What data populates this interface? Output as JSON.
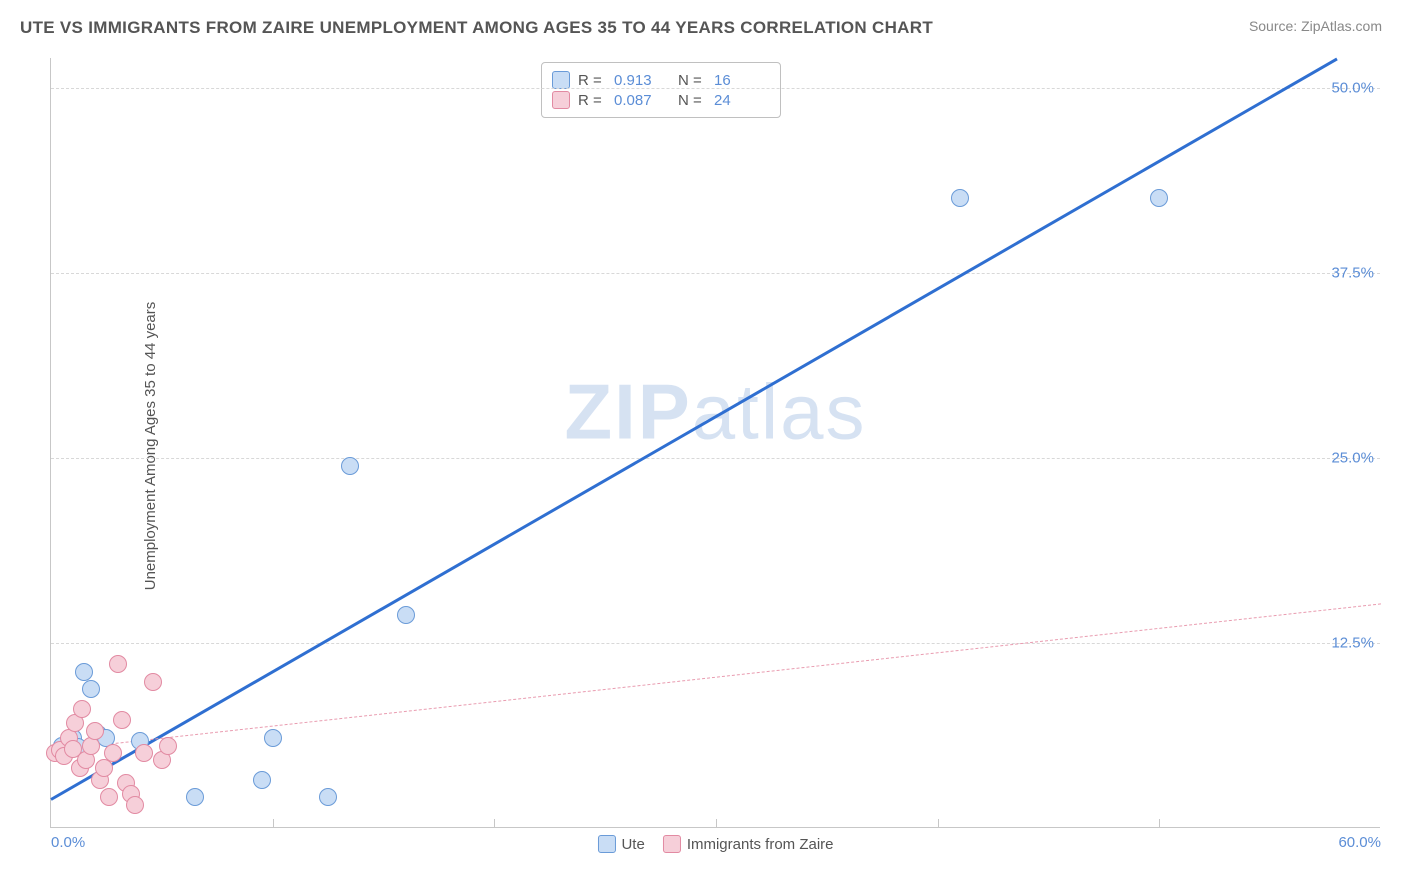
{
  "title": "UTE VS IMMIGRANTS FROM ZAIRE UNEMPLOYMENT AMONG AGES 35 TO 44 YEARS CORRELATION CHART",
  "source": "Source: ZipAtlas.com",
  "ylabel": "Unemployment Among Ages 35 to 44 years",
  "watermark_zip": "ZIP",
  "watermark_rest": "atlas",
  "chart": {
    "type": "scatter",
    "xlim": [
      0,
      60
    ],
    "ylim": [
      0,
      52
    ],
    "x_ticks": [
      0.0,
      60.0
    ],
    "x_tick_labels": [
      "0.0%",
      "60.0%"
    ],
    "x_major_lines": [
      10,
      20,
      30,
      40,
      50
    ],
    "y_ticks": [
      12.5,
      25.0,
      37.5,
      50.0
    ],
    "y_tick_labels": [
      "12.5%",
      "25.0%",
      "37.5%",
      "50.0%"
    ],
    "background_color": "#ffffff",
    "grid_color": "#d8d8d8",
    "axis_color": "#c7c7c7",
    "tick_label_color": "#5b8dd6",
    "tick_label_fontsize": 15,
    "marker_radius": 9,
    "series": [
      {
        "name": "Ute",
        "color_fill": "#c9ddf5",
        "color_stroke": "#6a9bd8",
        "R": "0.913",
        "N": "16",
        "trend": {
          "x1": 0,
          "y1": 2.0,
          "x2": 58,
          "y2": 52,
          "width": 3,
          "color": "#2f6fd1",
          "dash": "solid"
        },
        "points": [
          [
            0.5,
            5.5
          ],
          [
            1.0,
            6.0
          ],
          [
            1.2,
            5.4
          ],
          [
            1.5,
            10.5
          ],
          [
            1.8,
            9.3
          ],
          [
            2.1,
            6.3
          ],
          [
            2.5,
            6.0
          ],
          [
            4.0,
            5.8
          ],
          [
            6.5,
            2.0
          ],
          [
            10.0,
            6.0
          ],
          [
            9.5,
            3.2
          ],
          [
            12.5,
            2.0
          ],
          [
            13.5,
            24.4
          ],
          [
            16.0,
            14.3
          ],
          [
            41.0,
            42.5
          ],
          [
            50.0,
            42.5
          ]
        ]
      },
      {
        "name": "Immigrants from Zaire",
        "color_fill": "#f6cfd9",
        "color_stroke": "#e28aa2",
        "R": "0.087",
        "N": "24",
        "trend": {
          "x1": 0,
          "y1": 5.3,
          "x2": 60,
          "y2": 15.2,
          "width": 1,
          "color": "#e99cb0",
          "dash": "dashed"
        },
        "points": [
          [
            0.2,
            5.0
          ],
          [
            0.4,
            5.2
          ],
          [
            0.6,
            4.8
          ],
          [
            0.8,
            6.0
          ],
          [
            1.0,
            5.3
          ],
          [
            1.1,
            7.0
          ],
          [
            1.3,
            4.0
          ],
          [
            1.4,
            8.0
          ],
          [
            1.6,
            4.5
          ],
          [
            1.8,
            5.5
          ],
          [
            2.0,
            6.5
          ],
          [
            2.2,
            3.2
          ],
          [
            2.4,
            4.0
          ],
          [
            2.6,
            2.0
          ],
          [
            2.8,
            5.0
          ],
          [
            3.0,
            11.0
          ],
          [
            3.2,
            7.2
          ],
          [
            3.4,
            3.0
          ],
          [
            3.6,
            2.2
          ],
          [
            3.8,
            1.5
          ],
          [
            4.2,
            5.0
          ],
          [
            4.6,
            9.8
          ],
          [
            5.0,
            4.5
          ],
          [
            5.3,
            5.5
          ]
        ]
      }
    ]
  },
  "legend_top": {
    "R_label": "R =",
    "N_label": "N ="
  },
  "legend_bottom": [
    {
      "label": "Ute",
      "fill": "#c9ddf5",
      "stroke": "#6a9bd8"
    },
    {
      "label": "Immigrants from Zaire",
      "fill": "#f6cfd9",
      "stroke": "#e28aa2"
    }
  ]
}
